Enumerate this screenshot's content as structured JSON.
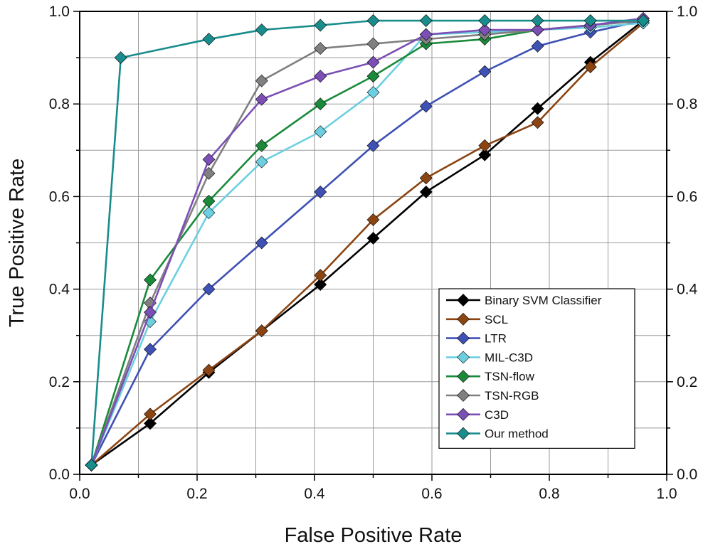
{
  "chart_data": {
    "type": "line",
    "title": "",
    "xlabel": "False Positive Rate",
    "ylabel": "True Positive Rate",
    "xlim": [
      0.0,
      1.0
    ],
    "ylim": [
      0.0,
      1.0
    ],
    "x_ticks": [
      "0.0",
      "0.2",
      "0.4",
      "0.6",
      "0.8",
      "1.0"
    ],
    "y_ticks": [
      "0.0",
      "0.2",
      "0.4",
      "0.6",
      "0.8",
      "1.0"
    ],
    "y_ticks_right": [
      "0.0",
      "0.2",
      "0.4",
      "0.6",
      "0.8",
      "1.0"
    ],
    "grid": true,
    "marker": "diamond",
    "legend_position": "bottom-right",
    "series": [
      {
        "name": "Binary SVM Classifier",
        "color": "#000000",
        "x": [
          0.02,
          0.12,
          0.22,
          0.31,
          0.41,
          0.5,
          0.59,
          0.69,
          0.78,
          0.87,
          0.96
        ],
        "y": [
          0.02,
          0.11,
          0.22,
          0.31,
          0.41,
          0.51,
          0.61,
          0.69,
          0.79,
          0.89,
          0.98
        ]
      },
      {
        "name": "SCL",
        "color": "#8B4513",
        "x": [
          0.02,
          0.12,
          0.22,
          0.31,
          0.41,
          0.5,
          0.59,
          0.69,
          0.78,
          0.87,
          0.96
        ],
        "y": [
          0.02,
          0.13,
          0.225,
          0.31,
          0.43,
          0.55,
          0.64,
          0.71,
          0.76,
          0.88,
          0.975
        ]
      },
      {
        "name": "LTR",
        "color": "#3F51B5",
        "x": [
          0.02,
          0.12,
          0.22,
          0.31,
          0.41,
          0.5,
          0.59,
          0.69,
          0.78,
          0.87,
          0.96
        ],
        "y": [
          0.02,
          0.27,
          0.4,
          0.5,
          0.61,
          0.71,
          0.795,
          0.87,
          0.925,
          0.955,
          0.98
        ]
      },
      {
        "name": "MIL-C3D",
        "color": "#6CCFE0",
        "x": [
          0.02,
          0.12,
          0.22,
          0.31,
          0.41,
          0.5,
          0.59,
          0.69,
          0.78,
          0.87,
          0.96
        ],
        "y": [
          0.02,
          0.33,
          0.565,
          0.675,
          0.74,
          0.825,
          0.95,
          0.955,
          0.96,
          0.965,
          0.975
        ]
      },
      {
        "name": "TSN-flow",
        "color": "#1A8A3A",
        "x": [
          0.02,
          0.12,
          0.22,
          0.31,
          0.41,
          0.5,
          0.59,
          0.69,
          0.78,
          0.87,
          0.96
        ],
        "y": [
          0.02,
          0.42,
          0.59,
          0.71,
          0.8,
          0.86,
          0.93,
          0.94,
          0.96,
          0.97,
          0.98
        ]
      },
      {
        "name": "TSN-RGB",
        "color": "#808080",
        "x": [
          0.02,
          0.12,
          0.22,
          0.31,
          0.41,
          0.5,
          0.59,
          0.69,
          0.78,
          0.87,
          0.96
        ],
        "y": [
          0.02,
          0.37,
          0.65,
          0.85,
          0.92,
          0.93,
          0.94,
          0.95,
          0.96,
          0.97,
          0.98
        ]
      },
      {
        "name": "C3D",
        "color": "#7B4FB5",
        "x": [
          0.02,
          0.12,
          0.22,
          0.31,
          0.41,
          0.5,
          0.59,
          0.69,
          0.78,
          0.87,
          0.96
        ],
        "y": [
          0.02,
          0.35,
          0.68,
          0.81,
          0.86,
          0.89,
          0.95,
          0.96,
          0.96,
          0.97,
          0.985
        ]
      },
      {
        "name": "Our method",
        "color": "#198C8C",
        "x": [
          0.02,
          0.07,
          0.22,
          0.31,
          0.41,
          0.5,
          0.59,
          0.69,
          0.78,
          0.87,
          0.96
        ],
        "y": [
          0.02,
          0.9,
          0.94,
          0.96,
          0.97,
          0.98,
          0.98,
          0.98,
          0.98,
          0.98,
          0.98
        ]
      }
    ]
  }
}
